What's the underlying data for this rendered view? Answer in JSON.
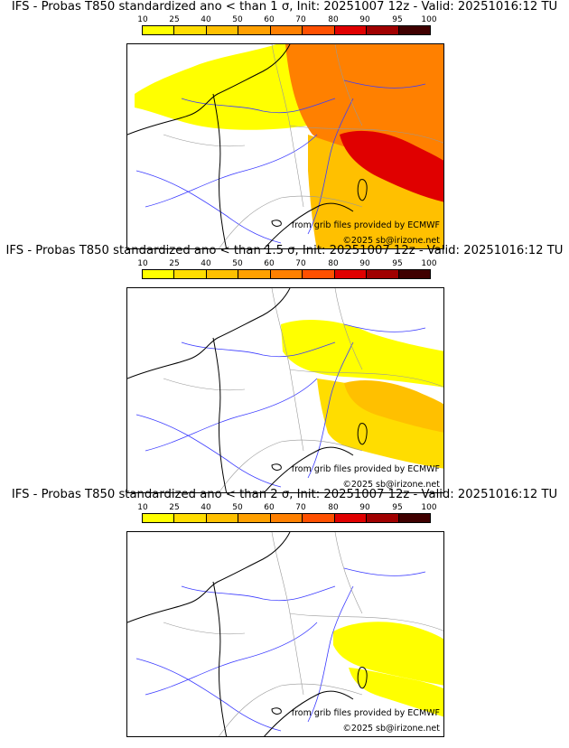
{
  "colors": {
    "c10": "#ffff00",
    "c25": "#ffdd00",
    "c40": "#ffc000",
    "c50": "#ffa000",
    "c60": "#ff8000",
    "c70": "#ff5000",
    "c80": "#e00000",
    "c90": "#a00000",
    "c95": "#7a0000",
    "c100": "#400000",
    "rivers": "#3c3cff",
    "borders": "#999999",
    "coast": "#000000"
  },
  "scale_ticks": [
    "10",
    "25",
    "40",
    "50",
    "60",
    "70",
    "80",
    "90",
    "95",
    "100"
  ],
  "panels": [
    {
      "title": "IFS - Probas T850  standardized ano < than 1 σ, Init: 20251007 12z - Valid: 20251016:12 TU",
      "credit_grib": "from grib files provided by ECMWF",
      "credit_site": "©2025 sb@irizone.net",
      "probability_pct": {
        "north_west": 10,
        "north_east": 60,
        "alps": 80,
        "south_east": 40
      }
    },
    {
      "title": "IFS - Probas T850  standardized ano < than 1.5 σ, Init: 20251007 12z - Valid: 20251016:12 TU",
      "credit_grib": "from grib files provided by ECMWF",
      "credit_site": "©2025 sb@irizone.net",
      "probability_pct": {
        "north_west": 0,
        "north_east": 10,
        "alps": 40,
        "south_east": 25
      }
    },
    {
      "title": "IFS - Probas T850  standardized ano < than 2 σ, Init: 20251007 12z - Valid: 20251016:12 TU",
      "credit_grib": "from grib files provided by ECMWF",
      "credit_site": "©2025 sb@irizone.net",
      "probability_pct": {
        "north_west": 0,
        "north_east": 0,
        "alps": 10,
        "south_east": 10
      }
    }
  ]
}
